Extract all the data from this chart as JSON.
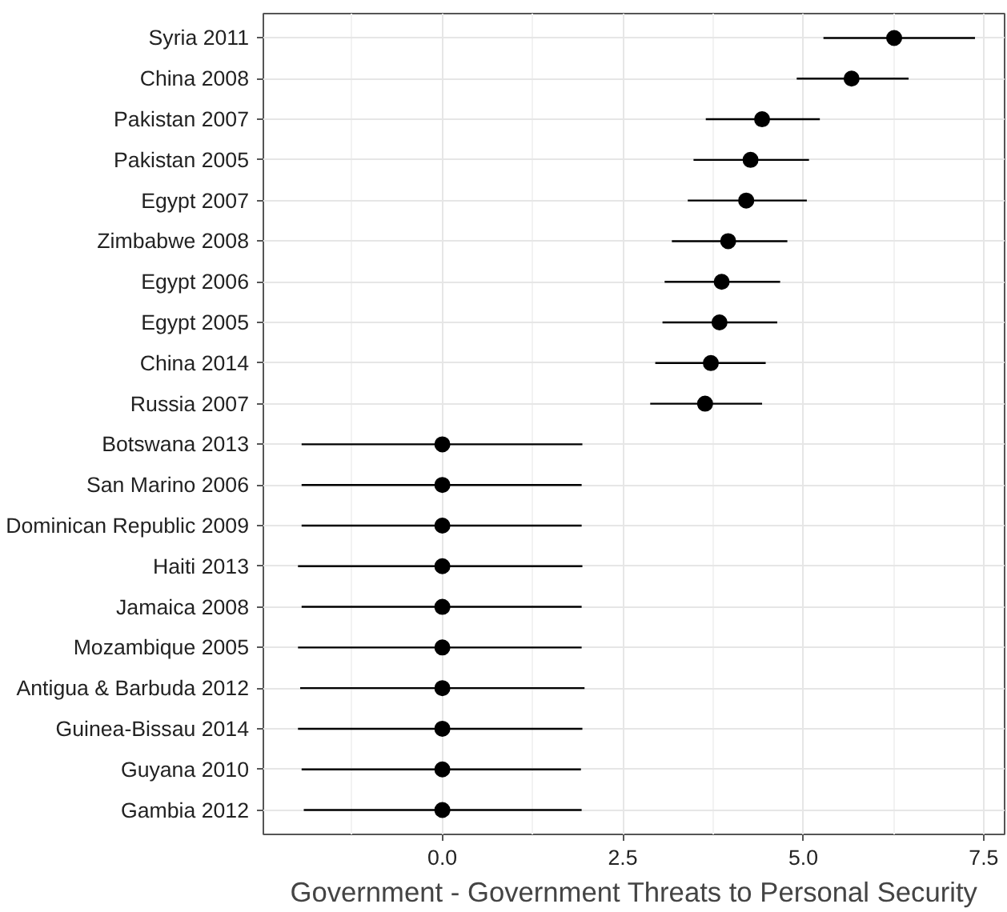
{
  "chart_data": {
    "type": "scatter",
    "orientation": "horizontal",
    "xlabel": "Government - Government Threats to Personal Security",
    "categories": [
      "Syria 2011",
      "China 2008",
      "Pakistan 2007",
      "Pakistan 2005",
      "Egypt 2007",
      "Zimbabwe 2008",
      "Egypt 2006",
      "Egypt 2005",
      "China 2014",
      "Russia 2007",
      "Botswana 2013",
      "San Marino 2006",
      "Dominican Republic 2009",
      "Haiti 2013",
      "Jamaica 2008",
      "Mozambique 2005",
      "Antigua & Barbuda 2012",
      "Guinea-Bissau 2014",
      "Guyana 2010",
      "Gambia 2012"
    ],
    "values": [
      6.26,
      5.67,
      4.43,
      4.27,
      4.21,
      3.96,
      3.87,
      3.84,
      3.72,
      3.64,
      0,
      0,
      0,
      0,
      0,
      0,
      0,
      0,
      0,
      0
    ],
    "errors": [
      [
        5.28,
        7.38
      ],
      [
        4.91,
        6.46
      ],
      [
        3.65,
        5.23
      ],
      [
        3.48,
        5.08
      ],
      [
        3.4,
        5.05
      ],
      [
        3.18,
        4.78
      ],
      [
        3.08,
        4.68
      ],
      [
        3.05,
        4.64
      ],
      [
        2.95,
        4.48
      ],
      [
        2.88,
        4.43
      ],
      [
        -1.95,
        1.94
      ],
      [
        -1.95,
        1.93
      ],
      [
        -1.95,
        1.93
      ],
      [
        -2.0,
        1.94
      ],
      [
        -1.95,
        1.93
      ],
      [
        -2.0,
        1.93
      ],
      [
        -1.97,
        1.97
      ],
      [
        -2.0,
        1.94
      ],
      [
        -1.95,
        1.92
      ],
      [
        -1.92,
        1.93
      ]
    ],
    "color": "#000000",
    "marker": "circle",
    "grid": true,
    "xlim": [
      -2.48,
      7.79
    ],
    "xticks": [
      {
        "value": 0,
        "label": "0.0"
      },
      2.5,
      {
        "value": 5,
        "label": "5.0"
      },
      7.5
    ]
  }
}
